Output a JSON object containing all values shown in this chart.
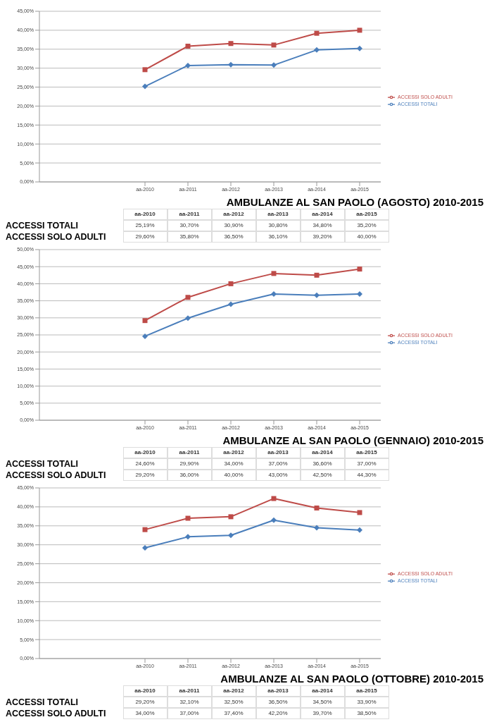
{
  "chart_data": [
    {
      "type": "line",
      "title": "AMBULANZE AL SAN PAOLO (AGOSTO) 2010-2015",
      "categories": [
        "aa-2010",
        "aa-2011",
        "aa-2012",
        "aa-2013",
        "aa-2014",
        "aa-2015"
      ],
      "series": [
        {
          "name": "ACCESSI TOTALI",
          "color": "#4a7ebb",
          "marker": "diamond",
          "values": [
            25.19,
            30.7,
            30.9,
            30.8,
            34.8,
            35.2
          ],
          "value_labels": [
            "25,19%",
            "30,70%",
            "30,90%",
            "30,80%",
            "34,80%",
            "35,20%"
          ]
        },
        {
          "name": "ACCESSI SOLO ADULTI",
          "color": "#be4b48",
          "marker": "square",
          "values": [
            29.6,
            35.8,
            36.5,
            36.1,
            39.2,
            40.0
          ],
          "value_labels": [
            "29,60%",
            "35,80%",
            "36,50%",
            "36,10%",
            "39,20%",
            "40,00%"
          ]
        }
      ],
      "ylim": [
        0,
        45
      ],
      "yticks": [
        {
          "value": 0,
          "label": "0,00%"
        },
        {
          "value": 5,
          "label": "5,00%"
        },
        {
          "value": 10,
          "label": "10,00%"
        },
        {
          "value": 15,
          "label": "15,00%"
        },
        {
          "value": 20,
          "label": "20,00%"
        },
        {
          "value": 25,
          "label": "25,00%"
        },
        {
          "value": 30,
          "label": "30,00%"
        },
        {
          "value": 35,
          "label": "35,00%"
        },
        {
          "value": 40,
          "label": "40,00%"
        },
        {
          "value": 45,
          "label": "45,00%"
        }
      ],
      "grid": "y",
      "legend": "right"
    },
    {
      "type": "line",
      "title": "AMBULANZE AL SAN PAOLO (GENNAIO) 2010-2015",
      "categories": [
        "aa-2010",
        "aa-2011",
        "aa-2012",
        "aa-2013",
        "aa-2014",
        "aa-2015"
      ],
      "series": [
        {
          "name": "ACCESSI TOTALI",
          "color": "#4a7ebb",
          "marker": "diamond",
          "values": [
            24.6,
            29.9,
            34.0,
            37.0,
            36.6,
            37.0
          ],
          "value_labels": [
            "24,60%",
            "29,90%",
            "34,00%",
            "37,00%",
            "36,60%",
            "37,00%"
          ]
        },
        {
          "name": "ACCESSI SOLO ADULTI",
          "color": "#be4b48",
          "marker": "square",
          "values": [
            29.2,
            36.0,
            40.0,
            43.0,
            42.5,
            44.3
          ],
          "value_labels": [
            "29,20%",
            "36,00%",
            "40,00%",
            "43,00%",
            "42,50%",
            "44,30%"
          ]
        }
      ],
      "ylim": [
        0,
        50
      ],
      "yticks": [
        {
          "value": 0,
          "label": "0,00%"
        },
        {
          "value": 5,
          "label": "5,00%"
        },
        {
          "value": 10,
          "label": "10,00%"
        },
        {
          "value": 15,
          "label": "15,00%"
        },
        {
          "value": 20,
          "label": "20,00%"
        },
        {
          "value": 25,
          "label": "25,00%"
        },
        {
          "value": 30,
          "label": "30,00%"
        },
        {
          "value": 35,
          "label": "35,00%"
        },
        {
          "value": 40,
          "label": "40,00%"
        },
        {
          "value": 45,
          "label": "45,00%"
        },
        {
          "value": 50,
          "label": "50,00%"
        }
      ],
      "grid": "y",
      "legend": "right"
    },
    {
      "type": "line",
      "title": "AMBULANZE AL SAN PAOLO (OTTOBRE) 2010-2015",
      "categories": [
        "aa-2010",
        "aa-2011",
        "aa-2012",
        "aa-2013",
        "aa-2014",
        "aa-2015"
      ],
      "series": [
        {
          "name": "ACCESSI TOTALI",
          "color": "#4a7ebb",
          "marker": "diamond",
          "values": [
            29.2,
            32.1,
            32.5,
            36.5,
            34.5,
            33.9
          ],
          "value_labels": [
            "29,20%",
            "32,10%",
            "32,50%",
            "36,50%",
            "34,50%",
            "33,90%"
          ]
        },
        {
          "name": "ACCESSI SOLO ADULTI",
          "color": "#be4b48",
          "marker": "square",
          "values": [
            34.0,
            37.0,
            37.4,
            42.2,
            39.7,
            38.5
          ],
          "value_labels": [
            "34,00%",
            "37,00%",
            "37,40%",
            "42,20%",
            "39,70%",
            "38,50%"
          ]
        }
      ],
      "ylim": [
        0,
        45
      ],
      "yticks": [
        {
          "value": 0,
          "label": "0,00%"
        },
        {
          "value": 5,
          "label": "5,00%"
        },
        {
          "value": 10,
          "label": "10,00%"
        },
        {
          "value": 15,
          "label": "15,00%"
        },
        {
          "value": 20,
          "label": "20,00%"
        },
        {
          "value": 25,
          "label": "25,00%"
        },
        {
          "value": 30,
          "label": "30,00%"
        },
        {
          "value": 35,
          "label": "35,00%"
        },
        {
          "value": 40,
          "label": "40,00%"
        },
        {
          "value": 45,
          "label": "45,00%"
        }
      ],
      "grid": "y",
      "legend": "right"
    }
  ]
}
